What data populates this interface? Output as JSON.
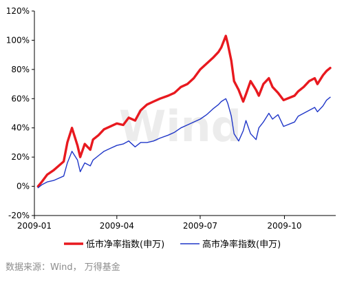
{
  "chart_data": {
    "type": "line",
    "title": "",
    "xlabel": "",
    "ylabel": "",
    "x_ticks": [
      "2009-01",
      "2009-04",
      "2009-07",
      "2009-10"
    ],
    "y_ticks": [
      "-20%",
      "0%",
      "20%",
      "40%",
      "60%",
      "80%",
      "100%",
      "120%"
    ],
    "ylim": [
      -20,
      120
    ],
    "grid": false,
    "legend_position": "bottom",
    "watermark": "Wind",
    "series": [
      {
        "name": "低市净率指数(申万)",
        "color": "#e8191f",
        "x": [
          "2009-01-05",
          "2009-01-09",
          "2009-01-15",
          "2009-01-22",
          "2009-02-02",
          "2009-02-06",
          "2009-02-11",
          "2009-02-17",
          "2009-02-20",
          "2009-02-25",
          "2009-03-03",
          "2009-03-06",
          "2009-03-12",
          "2009-03-18",
          "2009-03-25",
          "2009-04-01",
          "2009-04-08",
          "2009-04-14",
          "2009-04-21",
          "2009-04-27",
          "2009-05-04",
          "2009-05-11",
          "2009-05-18",
          "2009-05-27",
          "2009-06-03",
          "2009-06-10",
          "2009-06-17",
          "2009-06-24",
          "2009-07-01",
          "2009-07-08",
          "2009-07-15",
          "2009-07-21",
          "2009-07-24",
          "2009-07-29",
          "2009-07-31",
          "2009-08-04",
          "2009-08-07",
          "2009-08-12",
          "2009-08-17",
          "2009-08-20",
          "2009-08-25",
          "2009-08-31",
          "2009-09-03",
          "2009-09-08",
          "2009-09-14",
          "2009-09-18",
          "2009-09-24",
          "2009-09-30",
          "2009-10-12",
          "2009-10-16",
          "2009-10-22",
          "2009-10-28",
          "2009-11-03",
          "2009-11-06",
          "2009-11-12",
          "2009-11-16",
          "2009-11-20"
        ],
        "values": [
          0,
          3,
          8,
          11,
          17,
          30,
          40,
          28,
          20,
          29,
          25,
          32,
          35,
          39,
          41,
          43,
          42,
          47,
          45,
          52,
          56,
          58,
          60,
          62,
          64,
          68,
          70,
          74,
          80,
          84,
          88,
          92,
          95,
          103,
          98,
          86,
          72,
          66,
          58,
          63,
          72,
          66,
          62,
          70,
          74,
          68,
          64,
          59,
          62,
          65,
          68,
          72,
          74,
          70,
          76,
          79,
          81
        ]
      },
      {
        "name": "高市净率指数(申万)",
        "color": "#1f36c8",
        "x": [
          "2009-01-05",
          "2009-01-09",
          "2009-01-15",
          "2009-01-22",
          "2009-02-02",
          "2009-02-06",
          "2009-02-11",
          "2009-02-17",
          "2009-02-20",
          "2009-02-25",
          "2009-03-03",
          "2009-03-06",
          "2009-03-12",
          "2009-03-18",
          "2009-03-25",
          "2009-04-01",
          "2009-04-08",
          "2009-04-14",
          "2009-04-21",
          "2009-04-27",
          "2009-05-04",
          "2009-05-11",
          "2009-05-18",
          "2009-05-27",
          "2009-06-03",
          "2009-06-10",
          "2009-06-17",
          "2009-06-24",
          "2009-07-01",
          "2009-07-08",
          "2009-07-15",
          "2009-07-21",
          "2009-07-24",
          "2009-07-29",
          "2009-07-31",
          "2009-08-04",
          "2009-08-07",
          "2009-08-12",
          "2009-08-17",
          "2009-08-20",
          "2009-08-25",
          "2009-08-31",
          "2009-09-03",
          "2009-09-08",
          "2009-09-14",
          "2009-09-18",
          "2009-09-24",
          "2009-09-30",
          "2009-10-12",
          "2009-10-16",
          "2009-10-22",
          "2009-10-28",
          "2009-11-03",
          "2009-11-06",
          "2009-11-12",
          "2009-11-16",
          "2009-11-20"
        ],
        "values": [
          -1,
          1,
          3,
          4,
          7,
          16,
          24,
          18,
          10,
          16,
          14,
          18,
          21,
          24,
          26,
          28,
          29,
          31,
          27,
          30,
          30,
          31,
          33,
          35,
          37,
          40,
          42,
          44,
          46,
          49,
          53,
          56,
          58,
          60,
          57,
          48,
          36,
          31,
          38,
          45,
          36,
          32,
          40,
          44,
          50,
          46,
          49,
          41,
          44,
          48,
          50,
          52,
          54,
          51,
          55,
          59,
          61
        ]
      }
    ]
  },
  "source_note": "数据来源：Wind， 万得基金"
}
